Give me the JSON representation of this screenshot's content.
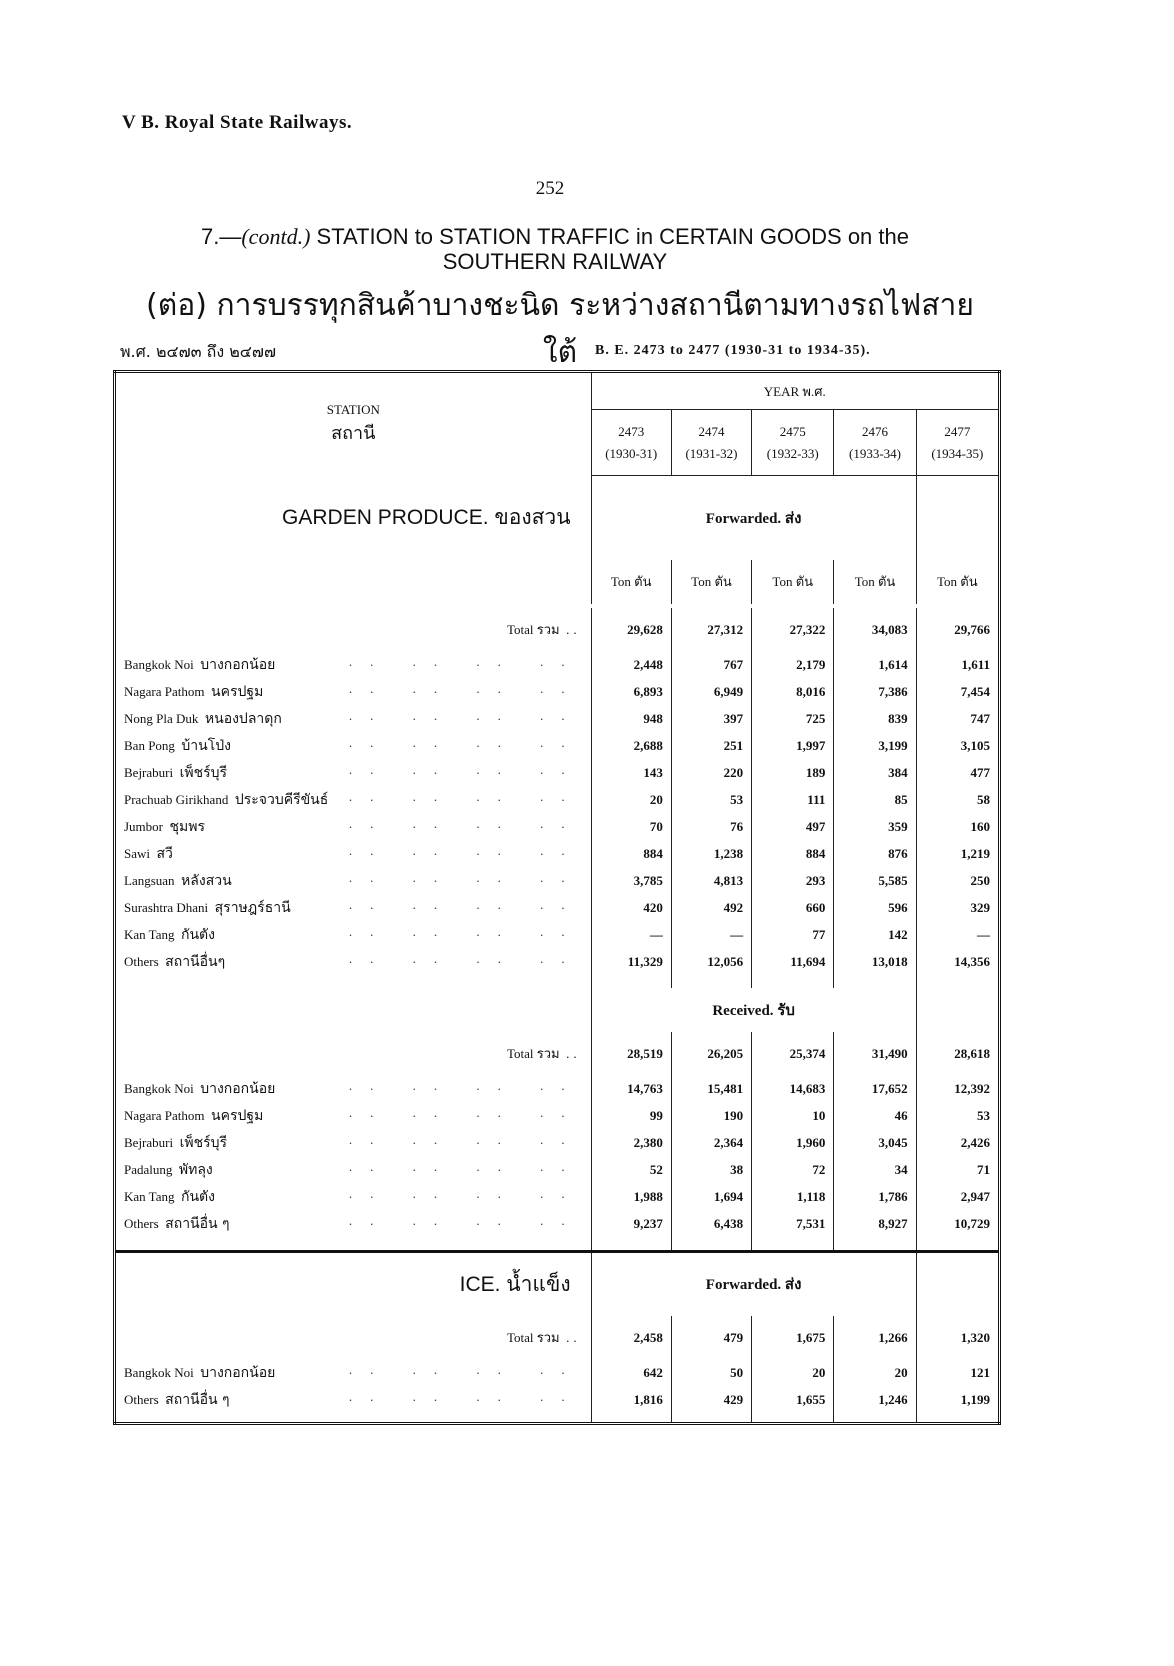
{
  "running_head": "V B. Royal State Railways.",
  "page_number": "252",
  "title": {
    "number": "7.—",
    "contd": "(contd.)",
    "text": "STATION to STATION TRAFFIC in CERTAIN GOODS on the SOUTHERN RAILWAY",
    "thai": "(ต่อ) การบรรทุกสินค้าบางชะนิด ระหว่างสถานีตามทางรถไฟสายใต้"
  },
  "period_thai": "พ.ศ. ๒๔๗๓ ถึง ๒๔๗๗",
  "period_eng": "B. E. 2473 to 2477 (1930-31 to 1934-35).",
  "header": {
    "station": "STATION",
    "station_thai": "สถานี",
    "year": "YEAR พ.ศ.",
    "years": [
      {
        "be": "2473",
        "ad": "(1930-31)"
      },
      {
        "be": "2474",
        "ad": "(1931-32)"
      },
      {
        "be": "2475",
        "ad": "(1932-33)"
      },
      {
        "be": "2476",
        "ad": "(1933-34)"
      },
      {
        "be": "2477",
        "ad": "(1934-35)"
      }
    ]
  },
  "unit": "Ton ตัน",
  "total_label": "Total รวม",
  "garden": {
    "title": "GARDEN PRODUCE. ของสวน",
    "forwarded": {
      "label": "Forwarded. ส่ง",
      "total": [
        "29,628",
        "27,312",
        "27,322",
        "34,083",
        "29,766"
      ],
      "rows": [
        {
          "name": "Bangkok Noi",
          "thai": "บางกอกน้อย",
          "v": [
            "2,448",
            "767",
            "2,179",
            "1,614",
            "1,611"
          ]
        },
        {
          "name": "Nagara Pathom",
          "thai": "นครปฐม",
          "v": [
            "6,893",
            "6,949",
            "8,016",
            "7,386",
            "7,454"
          ]
        },
        {
          "name": "Nong Pla Duk",
          "thai": "หนองปลาดุก",
          "v": [
            "948",
            "397",
            "725",
            "839",
            "747"
          ]
        },
        {
          "name": "Ban Pong",
          "thai": "บ้านโป่ง",
          "v": [
            "2,688",
            "251",
            "1,997",
            "3,199",
            "3,105"
          ]
        },
        {
          "name": "Bejraburi",
          "thai": "เพ็ชร์บุรี",
          "v": [
            "143",
            "220",
            "189",
            "384",
            "477"
          ]
        },
        {
          "name": "Prachuab Girikhand",
          "thai": "ประจวบคีรีขันธ์",
          "v": [
            "20",
            "53",
            "111",
            "85",
            "58"
          ]
        },
        {
          "name": "Jumbor",
          "thai": "ชุมพร",
          "v": [
            "70",
            "76",
            "497",
            "359",
            "160"
          ]
        },
        {
          "name": "Sawi",
          "thai": "สวี",
          "v": [
            "884",
            "1,238",
            "884",
            "876",
            "1,219"
          ]
        },
        {
          "name": "Langsuan",
          "thai": "หลังสวน",
          "v": [
            "3,785",
            "4,813",
            "293",
            "5,585",
            "250"
          ]
        },
        {
          "name": "Surashtra Dhani",
          "thai": "สุราษฎร์ธานี",
          "v": [
            "420",
            "492",
            "660",
            "596",
            "329"
          ]
        },
        {
          "name": "Kan Tang",
          "thai": "กันตัง",
          "v": [
            "—",
            "—",
            "77",
            "142",
            "—"
          ]
        },
        {
          "name": "Others",
          "thai": "สถานีอื่นๆ",
          "v": [
            "11,329",
            "12,056",
            "11,694",
            "13,018",
            "14,356"
          ]
        }
      ]
    },
    "received": {
      "label": "Received. รับ",
      "total": [
        "28,519",
        "26,205",
        "25,374",
        "31,490",
        "28,618"
      ],
      "rows": [
        {
          "name": "Bangkok Noi",
          "thai": "บางกอกน้อย",
          "v": [
            "14,763",
            "15,481",
            "14,683",
            "17,652",
            "12,392"
          ]
        },
        {
          "name": "Nagara Pathom",
          "thai": "นครปฐม",
          "v": [
            "99",
            "190",
            "10",
            "46",
            "53"
          ]
        },
        {
          "name": "Bejraburi",
          "thai": "เพ็ชร์บุรี",
          "v": [
            "2,380",
            "2,364",
            "1,960",
            "3,045",
            "2,426"
          ]
        },
        {
          "name": "Padalung",
          "thai": "พัทลุง",
          "v": [
            "52",
            "38",
            "72",
            "34",
            "71"
          ]
        },
        {
          "name": "Kan Tang",
          "thai": "กันตัง",
          "v": [
            "1,988",
            "1,694",
            "1,118",
            "1,786",
            "2,947"
          ]
        },
        {
          "name": "Others",
          "thai": "สถานีอื่น ๆ",
          "v": [
            "9,237",
            "6,438",
            "7,531",
            "8,927",
            "10,729"
          ]
        }
      ]
    }
  },
  "ice": {
    "title": "ICE. น้ำแข็ง",
    "forwarded": {
      "label": "Forwarded. ส่ง",
      "total": [
        "2,458",
        "479",
        "1,675",
        "1,266",
        "1,320"
      ],
      "rows": [
        {
          "name": "Bangkok Noi",
          "thai": "บางกอกน้อย",
          "v": [
            "642",
            "50",
            "20",
            "20",
            "121"
          ]
        },
        {
          "name": "Others",
          "thai": "สถานีอื่น ๆ",
          "v": [
            "1,816",
            "429",
            "1,655",
            "1,246",
            "1,199"
          ]
        }
      ]
    }
  }
}
